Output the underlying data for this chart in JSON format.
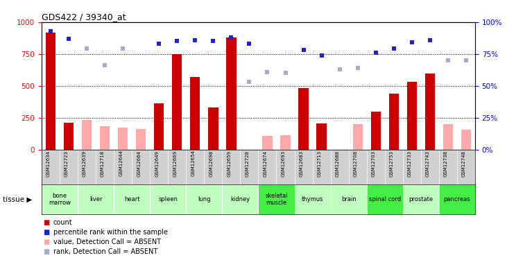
{
  "title": "GDS422 / 39340_at",
  "samples": [
    "GSM12634",
    "GSM12723",
    "GSM12639",
    "GSM12718",
    "GSM12644",
    "GSM12664",
    "GSM12649",
    "GSM12669",
    "GSM12654",
    "GSM12698",
    "GSM12659",
    "GSM12728",
    "GSM12674",
    "GSM12693",
    "GSM12683",
    "GSM12713",
    "GSM12688",
    "GSM12708",
    "GSM12703",
    "GSM12753",
    "GSM12733",
    "GSM12743",
    "GSM12738",
    "GSM12748"
  ],
  "tissues": [
    {
      "name": "bone\nmarrow",
      "cols": [
        0,
        1
      ],
      "color": "#c0ffc0"
    },
    {
      "name": "liver",
      "cols": [
        2,
        3
      ],
      "color": "#c0ffc0"
    },
    {
      "name": "heart",
      "cols": [
        4,
        5
      ],
      "color": "#c0ffc0"
    },
    {
      "name": "spleen",
      "cols": [
        6,
        7
      ],
      "color": "#c0ffc0"
    },
    {
      "name": "lung",
      "cols": [
        8,
        9
      ],
      "color": "#c0ffc0"
    },
    {
      "name": "kidney",
      "cols": [
        10,
        11
      ],
      "color": "#c0ffc0"
    },
    {
      "name": "skeletal\nmuscle",
      "cols": [
        12,
        13
      ],
      "color": "#44ee44"
    },
    {
      "name": "thymus",
      "cols": [
        14,
        15
      ],
      "color": "#c0ffc0"
    },
    {
      "name": "brain",
      "cols": [
        16,
        17
      ],
      "color": "#c0ffc0"
    },
    {
      "name": "spinal cord",
      "cols": [
        18,
        19
      ],
      "color": "#44ee44"
    },
    {
      "name": "prostate",
      "cols": [
        20,
        21
      ],
      "color": "#c0ffc0"
    },
    {
      "name": "pancreas",
      "cols": [
        22,
        23
      ],
      "color": "#44ee44"
    }
  ],
  "count": [
    920,
    210,
    null,
    null,
    null,
    null,
    360,
    750,
    570,
    330,
    880,
    null,
    null,
    null,
    480,
    205,
    null,
    null,
    300,
    440,
    530,
    595,
    null,
    null
  ],
  "count_absent": [
    null,
    null,
    230,
    185,
    170,
    160,
    null,
    null,
    null,
    null,
    null,
    null,
    105,
    110,
    null,
    null,
    null,
    200,
    null,
    null,
    null,
    null,
    200,
    155
  ],
  "rank": [
    93,
    87,
    null,
    null,
    null,
    null,
    83,
    85,
    86,
    85,
    88,
    83,
    null,
    null,
    78,
    74,
    null,
    null,
    76,
    79,
    84,
    86,
    null,
    null
  ],
  "rank_absent": [
    null,
    null,
    79,
    66,
    79,
    null,
    null,
    null,
    null,
    null,
    null,
    53,
    61,
    60,
    null,
    null,
    63,
    64,
    null,
    null,
    null,
    null,
    70,
    70
  ],
  "ylim_left": [
    0,
    1000
  ],
  "ylim_right": [
    0,
    100
  ],
  "yticks_left": [
    0,
    250,
    500,
    750,
    1000
  ],
  "yticks_right": [
    0,
    25,
    50,
    75,
    100
  ],
  "bar_color_present": "#cc0000",
  "bar_color_absent": "#ffaaaa",
  "rank_color_present": "#2222cc",
  "rank_color_absent": "#aaaacc",
  "xtick_bg": "#d0d0d0",
  "legend": [
    {
      "color": "#cc0000",
      "label": "count"
    },
    {
      "color": "#2222cc",
      "label": "percentile rank within the sample"
    },
    {
      "color": "#ffaaaa",
      "label": "value, Detection Call = ABSENT"
    },
    {
      "color": "#aaaacc",
      "label": "rank, Detection Call = ABSENT"
    }
  ]
}
